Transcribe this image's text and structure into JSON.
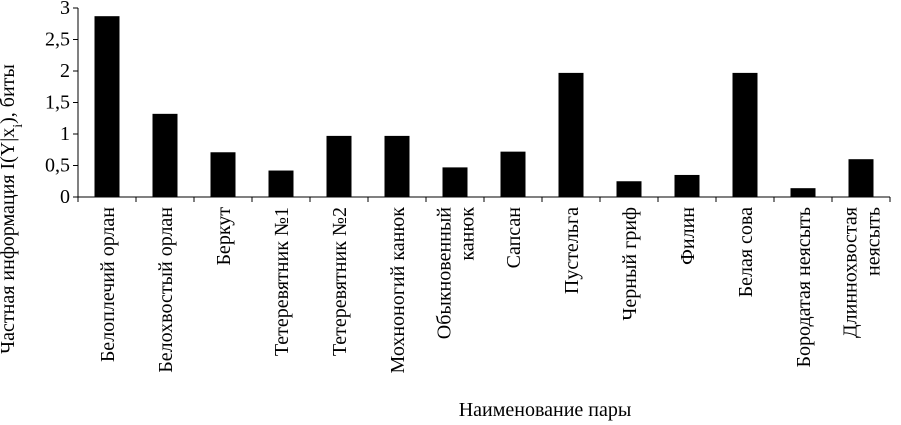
{
  "chart_data": {
    "type": "bar",
    "title": "",
    "xlabel": "Наименование пары",
    "ylabel": "Частная информация I(Y|x",
    "ylabel_subscript": "i",
    "ylabel_suffix": "), биты",
    "ylim": [
      0,
      3
    ],
    "yticks": [
      "0",
      "0,5",
      "1",
      "1,5",
      "2",
      "2,5",
      "3"
    ],
    "grid": false,
    "legend": "none",
    "bar_color": "#000000",
    "categories": [
      [
        "Белоплечий орлан"
      ],
      [
        "Белохвостый орлан"
      ],
      [
        "Беркут"
      ],
      [
        "Тетеревятник №1"
      ],
      [
        "Тетеревятник №2"
      ],
      [
        "Мохноногий канюк"
      ],
      [
        "Обыкновенный",
        "канюк"
      ],
      [
        "Сапсан"
      ],
      [
        "Пустельга"
      ],
      [
        "Черный гриф"
      ],
      [
        "Филин"
      ],
      [
        "Белая сова"
      ],
      [
        "Бородатая неясыть"
      ],
      [
        "Длиннохвостая",
        "неясыть"
      ]
    ],
    "values": [
      2.87,
      1.32,
      0.71,
      0.42,
      0.97,
      0.97,
      0.47,
      0.72,
      1.97,
      0.25,
      0.35,
      1.97,
      0.14,
      0.6
    ]
  }
}
